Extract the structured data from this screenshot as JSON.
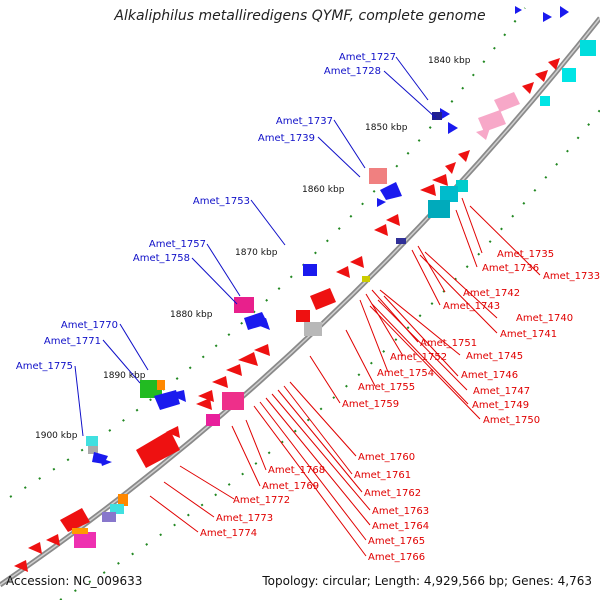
{
  "title": "Alkaliphilus metalliredigens QYMF, complete genome",
  "footer": {
    "accession": "Accession: NC_009633",
    "summary": "Topology: circular; Length: 4,929,566 bp; Genes: 4,763"
  },
  "scale_labels": [
    "1840 kbp",
    "1850 kbp",
    "1860 kbp",
    "1870 kbp",
    "1880 kbp",
    "1890 kbp",
    "1900 kbp"
  ],
  "outer_labels": [
    "Amet_1727",
    "Amet_1728",
    "Amet_1737",
    "Amet_1739",
    "Amet_1753",
    "Amet_1757",
    "Amet_1758",
    "Amet_1770",
    "Amet_1771",
    "Amet_1775"
  ],
  "inner_labels": [
    "Amet_1735",
    "Amet_1736",
    "Amet_1733",
    "Amet_1742",
    "Amet_1743",
    "Amet_1740",
    "Amet_1741",
    "Amet_1751",
    "Amet_1752",
    "Amet_1745",
    "Amet_1754",
    "Amet_1746",
    "Amet_1755",
    "Amet_1747",
    "Amet_1749",
    "Amet_1750",
    "Amet_1759",
    "Amet_1760",
    "Amet_1761",
    "Amet_1762",
    "Amet_1768",
    "Amet_1769",
    "Amet_1763",
    "Amet_1764",
    "Amet_1772",
    "Amet_1765",
    "Amet_1773",
    "Amet_1766",
    "Amet_1774"
  ],
  "colors": {
    "outer_label": "#1010c8",
    "inner_label": "#e00000",
    "backbone": "#888888",
    "forward_gene": "#0000ee",
    "reverse_gene": "#ee0000",
    "tick": "#228822"
  }
}
